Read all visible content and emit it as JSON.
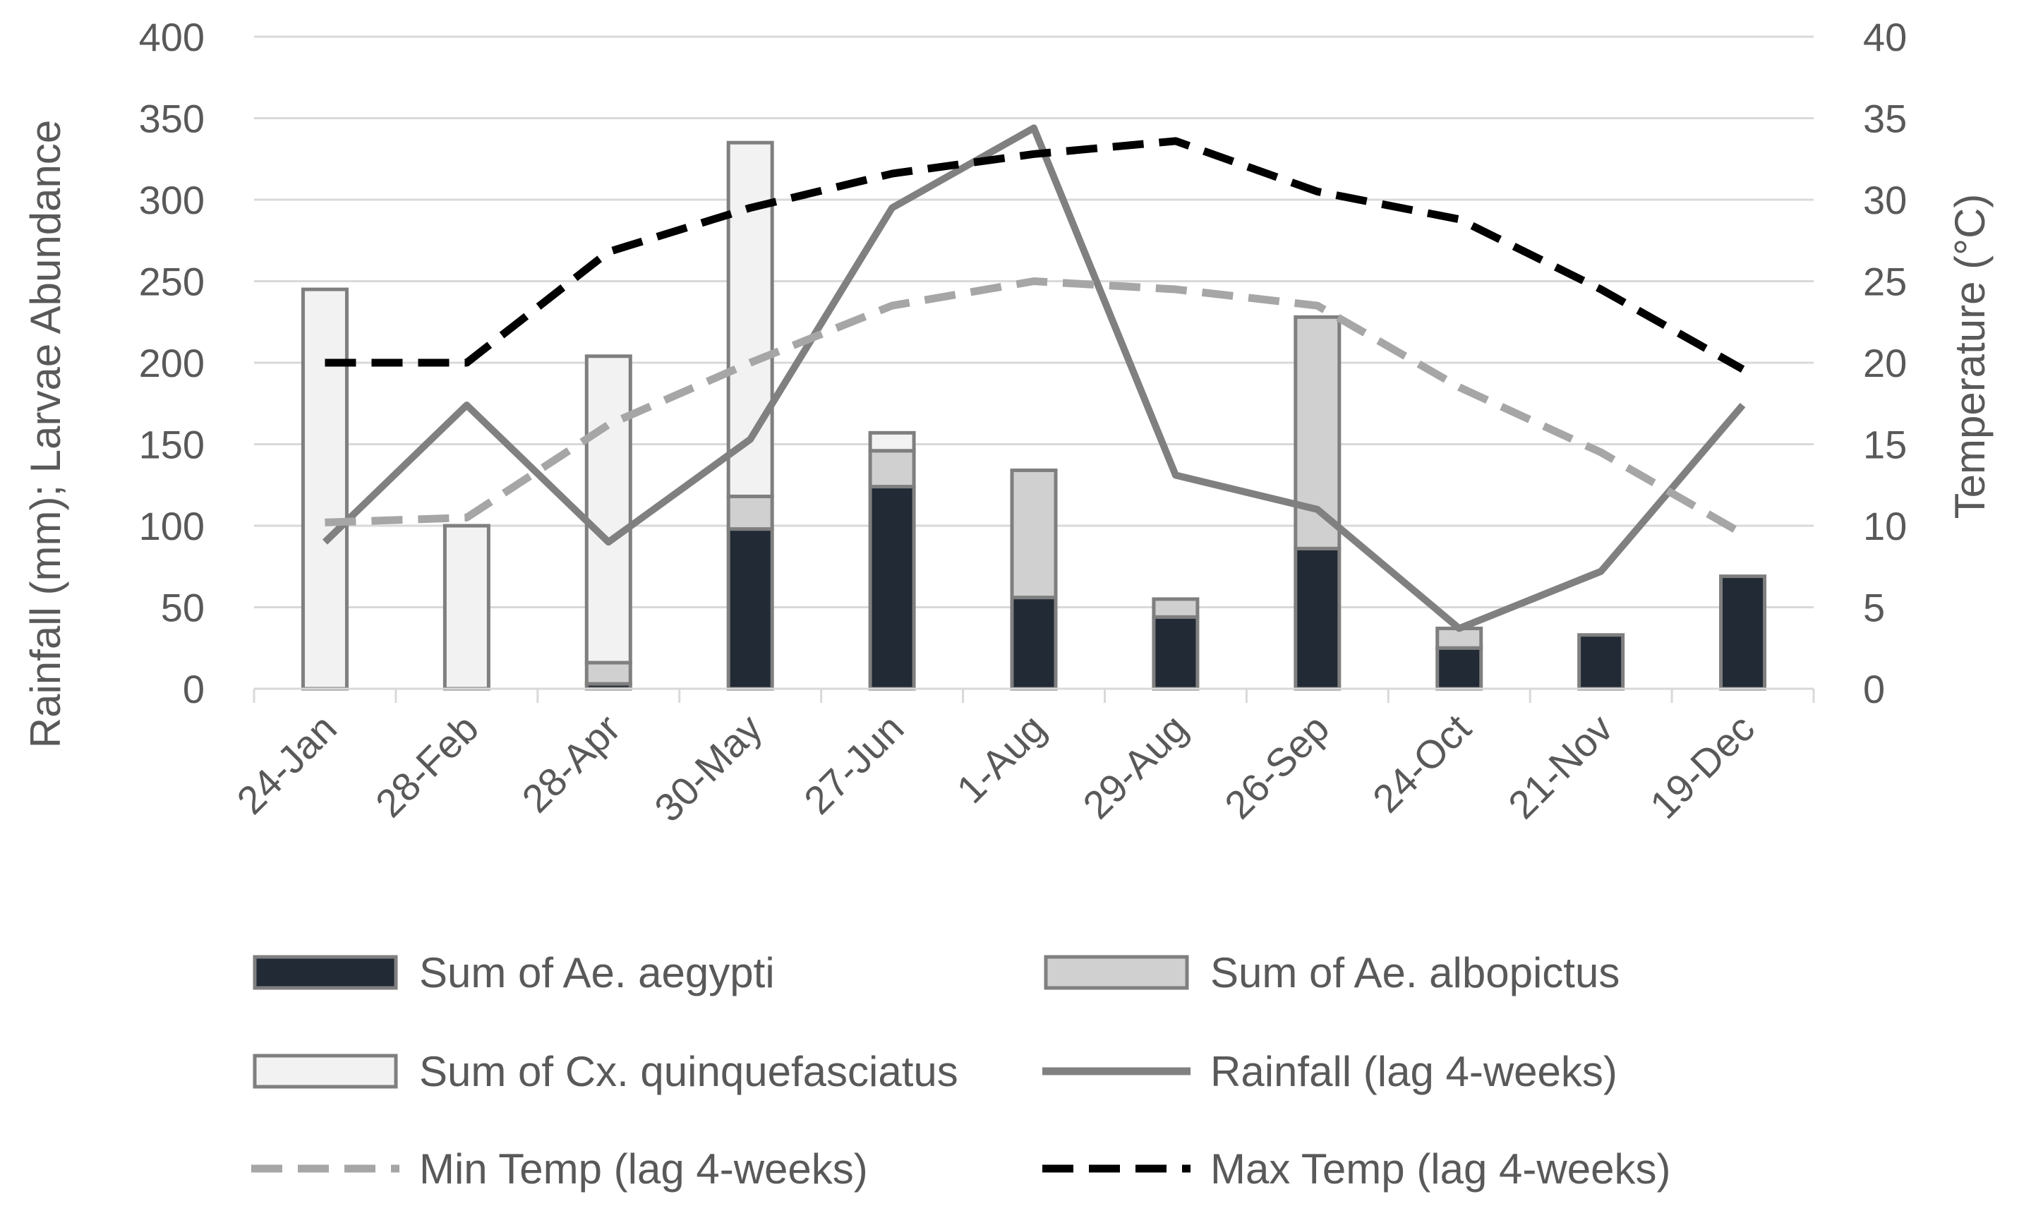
{
  "chart_data": {
    "type": "bar",
    "title": "",
    "categories": [
      "24-Jan",
      "28-Feb",
      "28-Apr",
      "30-May",
      "27-Jun",
      "1-Aug",
      "29-Aug",
      "26-Sep",
      "24-Oct",
      "21-Nov",
      "19-Dec"
    ],
    "ylabel": "Rainfall (mm); Larvae Abundance",
    "y2label": "Temperature (°C)",
    "ylim": [
      0,
      400
    ],
    "y2lim": [
      0,
      40
    ],
    "yticks": [
      "0",
      "50",
      "100",
      "150",
      "200",
      "250",
      "300",
      "350",
      "400"
    ],
    "y2ticks": [
      "0",
      "5",
      "10",
      "15",
      "20",
      "25",
      "30",
      "35",
      "40"
    ],
    "grid": true,
    "legend_position": "bottom",
    "bar_series": [
      {
        "name": "Sum of Ae. aegypti",
        "color": "#222a35",
        "values": [
          0,
          0,
          3,
          98,
          124,
          56,
          44,
          86,
          25,
          33,
          69
        ]
      },
      {
        "name": "Sum of Ae. albopictus",
        "color": "#d0d0d0",
        "values": [
          0,
          0,
          13,
          20,
          22,
          78,
          11,
          142,
          12,
          0,
          0
        ]
      },
      {
        "name": "Sum of Cx. quinquefasciatus",
        "color": "#f2f2f2",
        "values": [
          245,
          100,
          188,
          217,
          11,
          0,
          0,
          0,
          0,
          0,
          0
        ]
      }
    ],
    "line_series": [
      {
        "name": "Rainfall (lag 4-weeks)",
        "axis": "left",
        "style": "solid",
        "color": "#808080",
        "values": [
          90,
          174,
          90,
          153,
          295,
          344,
          131,
          110,
          37,
          72,
          174
        ]
      },
      {
        "name": "Min Temp (lag 4-weeks)",
        "axis": "right",
        "style": "dashed",
        "color": "#a6a6a6",
        "values": [
          10.2,
          10.5,
          16.2,
          20,
          23.5,
          25,
          24.5,
          23.5,
          18.5,
          14.5,
          9.5
        ]
      },
      {
        "name": "Max Temp (lag 4-weeks)",
        "axis": "right",
        "style": "dashed",
        "color": "#000000",
        "values": [
          20,
          20,
          26.8,
          29.5,
          31.6,
          32.8,
          33.6,
          30.5,
          28.8,
          24.5,
          19.6
        ]
      }
    ]
  },
  "legend": {
    "items": [
      {
        "label": "Sum of Ae. aegypti",
        "kind": "bar",
        "color": "#222a35"
      },
      {
        "label": "Sum of Ae. albopictus",
        "kind": "bar",
        "color": "#d0d0d0"
      },
      {
        "label": "Sum of Cx. quinquefasciatus",
        "kind": "bar",
        "color": "#f2f2f2"
      },
      {
        "label": "Rainfall (lag 4-weeks)",
        "kind": "solid",
        "color": "#808080"
      },
      {
        "label": "Min Temp (lag 4-weeks)",
        "kind": "dashed",
        "color": "#a6a6a6"
      },
      {
        "label": "Max Temp (lag 4-weeks)",
        "kind": "dashed",
        "color": "#000000"
      }
    ]
  }
}
